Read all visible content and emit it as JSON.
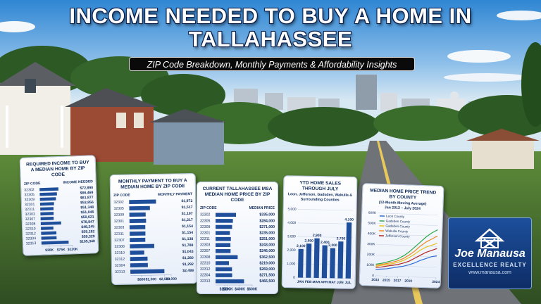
{
  "header": {
    "title": "INCOME NEEDED TO BUY A HOME IN TALLAHASSEE",
    "subtitle": "ZIP Code Breakdown, Monthly Payments & Affordability Insights"
  },
  "chart_data": [
    {
      "type": "bar",
      "orientation": "horizontal",
      "title": "REQUIRED INCOME TO BUY A MEDIAN HOME BY ZIP CODE",
      "column_labels": [
        "ZIP CODE",
        "INCOME NEEDED"
      ],
      "color": "#1f4e9a",
      "categories": [
        "32302",
        "32305",
        "32309",
        "32301",
        "32311",
        "32303",
        "32307",
        "32308",
        "32310",
        "32312",
        "32304",
        "32313"
      ],
      "values": [
        72890,
        66469,
        61877,
        53856,
        51348,
        51046,
        50621,
        78847,
        48245,
        59182,
        59329,
        105340
      ],
      "value_labels": [
        "$72,890",
        "$66,469",
        "$61,877",
        "$53,856",
        "$51,348",
        "$51,046",
        "$50,621",
        "$78,847",
        "$48,245",
        "$59,182",
        "$59,329",
        "$105,340"
      ],
      "xlim": [
        0,
        120000
      ],
      "xticks": [
        {
          "value": 30000,
          "label": "$30K"
        },
        {
          "value": 75000,
          "label": "$75K"
        },
        {
          "value": 120000,
          "label": "$120K"
        }
      ]
    },
    {
      "type": "bar",
      "orientation": "horizontal",
      "title": "MONTHLY PAYMENT TO BUY A MEDIAN HOME BY ZIP CODE",
      "column_labels": [
        "ZIP CODE",
        "MONTHLY PAYMENT"
      ],
      "color": "#1f4e9a",
      "categories": [
        "32302",
        "32305",
        "32309",
        "32301",
        "32303",
        "32311",
        "32307",
        "32308",
        "32310",
        "32312",
        "32304",
        "32313"
      ],
      "values": [
        1972,
        1517,
        1197,
        1217,
        1154,
        1154,
        1138,
        1788,
        1043,
        1280,
        1292,
        2499
      ],
      "value_labels": [
        "$1,972",
        "$1,517",
        "$1,197",
        "$1,217",
        "$1,154",
        "$1,154",
        "$1,138",
        "$1,788",
        "$1,043",
        "$1,280",
        "$1,292",
        "$2,499"
      ],
      "xlim": [
        0,
        3000
      ],
      "xticks": [
        {
          "value": 800,
          "label": "$800"
        },
        {
          "value": 1500,
          "label": "$1,500"
        },
        {
          "value": 2500,
          "label": "$2,500"
        },
        {
          "value": 3000,
          "label": "$3,000"
        }
      ]
    },
    {
      "type": "bar",
      "orientation": "horizontal",
      "title": "CURRENT TALLAHASSEE MSA MEDIAN HOME PRICE BY ZIP CODE",
      "column_labels": [
        "ZIP CODE",
        "MEDIAN PRICE"
      ],
      "color": "#1f4e9a",
      "categories": [
        "32302",
        "32305",
        "32309",
        "32301",
        "32311",
        "32303",
        "32307",
        "32308",
        "32310",
        "32312",
        "32304",
        "32313"
      ],
      "values": [
        335000,
        284000,
        271000,
        235000,
        251000,
        243000,
        246000,
        362500,
        219000,
        269000,
        271500,
        466500
      ],
      "value_labels": [
        "$335,000",
        "$284,000",
        "$271,000",
        "$235,000",
        "$251,000",
        "$243,000",
        "$246,000",
        "$362,500",
        "$219,000",
        "$269,000",
        "$271,500",
        "$466,500"
      ],
      "xlim": [
        0,
        600000
      ],
      "xticks": [
        {
          "value": 150000,
          "label": "$150K"
        },
        {
          "value": 200000,
          "label": "$200K"
        },
        {
          "value": 400000,
          "label": "$400K"
        },
        {
          "value": 600000,
          "label": "$600K"
        }
      ]
    },
    {
      "type": "bar",
      "orientation": "vertical",
      "title": "YTD HOME SALES THROUGH JULY",
      "subtitle": "Leon, Jefferson, Gadsden, Wakulla & Surrounding Counties",
      "color": "#1f4e9a",
      "categories": [
        "JAN",
        "FEB",
        "MAR",
        "APR",
        "MAY",
        "JUN",
        "JUL"
      ],
      "values": [
        2100,
        2500,
        2900,
        2400,
        2200,
        2700,
        4100
      ],
      "value_labels": [
        "2,100",
        "2,500",
        "2,900",
        "2,400",
        "2,200",
        "2,700",
        "4,100"
      ],
      "ylim": [
        0,
        5000
      ],
      "yticks": [
        0,
        {
          "value": 1000,
          "label": "1,000"
        },
        {
          "value": 2000,
          "label": "2,000"
        },
        {
          "value": 3000,
          "label": "3,000"
        },
        {
          "value": 4000,
          "label": "4,000"
        },
        {
          "value": 5000,
          "label": "5,000"
        }
      ],
      "grid": true
    },
    {
      "type": "line",
      "title": "MEDIAN HOME PRICE TREND BY COUNTY",
      "subtitle": "(12-Month Moving Average)",
      "date_range": "Jan 2013 – July 2024",
      "x": [
        2013,
        2014,
        2015,
        2016,
        2017,
        2018,
        2019,
        2020,
        2021,
        2022,
        2023,
        2024
      ],
      "series": [
        {
          "name": "Leon County",
          "color": "#2f6fd6",
          "values": [
            60000,
            65000,
            70000,
            80000,
            90000,
            100000,
            115000,
            135000,
            160000,
            180000,
            200000,
            210000
          ]
        },
        {
          "name": "Gadsden County",
          "color": "#2fa84a",
          "values": [
            110000,
            120000,
            135000,
            150000,
            170000,
            200000,
            240000,
            290000,
            340000,
            390000,
            430000,
            460000
          ]
        },
        {
          "name": "Gadsden County",
          "color": "#e8c21c",
          "values": [
            90000,
            100000,
            110000,
            120000,
            135000,
            155000,
            185000,
            220000,
            260000,
            290000,
            310000,
            330000
          ]
        },
        {
          "name": "Wakulla County",
          "color": "#f08a24",
          "values": [
            100000,
            110000,
            120000,
            135000,
            150000,
            175000,
            210000,
            250000,
            300000,
            340000,
            370000,
            400000
          ]
        },
        {
          "name": "Jefferson County",
          "color": "#b32424",
          "values": [
            80000,
            85000,
            95000,
            105000,
            115000,
            130000,
            150000,
            180000,
            210000,
            240000,
            260000,
            280000
          ]
        }
      ],
      "xlim": [
        2013,
        2024
      ],
      "xticks": [
        2013,
        2015,
        2017,
        2019,
        2024
      ],
      "ylim": [
        0,
        600000
      ],
      "yticks": [
        0,
        {
          "value": 100000,
          "label": "100K"
        },
        {
          "value": 200000,
          "label": "200K"
        },
        {
          "value": 300000,
          "label": "300K"
        },
        {
          "value": 400000,
          "label": "400K"
        },
        {
          "value": 500000,
          "label": "500K"
        },
        {
          "value": 600000,
          "label": "600K"
        }
      ],
      "grid": true,
      "legend": "upper left"
    }
  ],
  "logo": {
    "name": "Joe Manausa",
    "tagline": "EXCELLENCE REALTY",
    "url": "www.manausa.com"
  }
}
